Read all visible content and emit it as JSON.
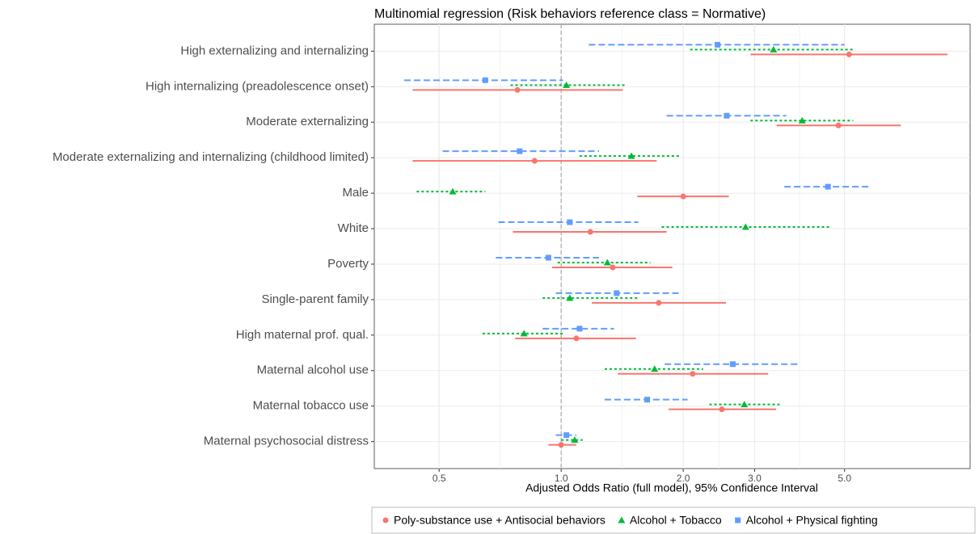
{
  "chart_data": {
    "type": "forest",
    "title": "Multinomial regression (Risk behaviors reference class = Normative)",
    "x_label": "Adjusted Odds Ratio (full model), 95% Confidence Interval",
    "log_x": true,
    "grid": true,
    "reference_line": 1,
    "legend_position": "bottom",
    "xlim": [
      0.346,
      10.2
    ],
    "xticks": [
      0.5,
      {
        "value": 1,
        "label": "1.0"
      },
      {
        "value": 2,
        "label": "2.0"
      },
      {
        "value": 3,
        "label": "3.0"
      },
      {
        "value": 5,
        "label": "5.0"
      }
    ],
    "categories": [
      "High externalizing and internalizing",
      "High internalizing (preadolescence onset)",
      "Moderate externalizing",
      "Moderate externalizing and internalizing (childhood limited)",
      "Male",
      "White",
      "Poverty",
      "Single-parent family",
      "High maternal prof. qual.",
      "Maternal alcohol use",
      "Maternal tobacco use",
      "Maternal psychosocial distress"
    ],
    "series": [
      {
        "name": "Poly-substance use + Antisocial behaviors",
        "color": "#F8766D",
        "marker": "circle",
        "line": "solid",
        "values": [
          5.13,
          0.78,
          4.83,
          0.86,
          2.0,
          1.18,
          1.34,
          1.74,
          1.09,
          2.11,
          2.49,
          1.0
        ],
        "lower": [
          2.93,
          0.43,
          3.4,
          0.43,
          1.54,
          0.76,
          0.95,
          1.19,
          0.77,
          1.38,
          1.84,
          0.93
        ],
        "upper": [
          8.97,
          1.42,
          6.88,
          1.72,
          2.59,
          1.82,
          1.88,
          2.55,
          1.53,
          3.24,
          3.39,
          1.09
        ]
      },
      {
        "name": "Alcohol + Tobacco",
        "color": "#00BA38",
        "marker": "triangle",
        "line": "dotted",
        "values": [
          3.34,
          1.03,
          3.93,
          1.49,
          0.54,
          2.85,
          1.3,
          1.05,
          0.81,
          1.7,
          2.83,
          1.08
        ],
        "lower": [
          2.08,
          0.75,
          2.93,
          1.11,
          0.44,
          1.77,
          0.98,
          0.9,
          0.64,
          1.28,
          2.32,
          1.0
        ],
        "upper": [
          5.29,
          1.44,
          5.25,
          1.98,
          0.65,
          4.63,
          1.66,
          1.55,
          1.01,
          2.24,
          3.5,
          1.13
        ]
      },
      {
        "name": "Alcohol + Physical fighting",
        "color": "#619CFF",
        "marker": "square",
        "line": "dashed",
        "values": [
          2.43,
          0.65,
          2.56,
          0.79,
          4.55,
          1.05,
          0.93,
          1.37,
          1.11,
          2.65,
          1.63,
          1.03
        ],
        "lower": [
          1.17,
          0.41,
          1.82,
          0.51,
          3.55,
          0.7,
          0.69,
          0.97,
          0.9,
          1.8,
          1.28,
          0.97
        ],
        "upper": [
          5.0,
          1.01,
          3.59,
          1.24,
          5.82,
          1.55,
          1.24,
          1.95,
          1.35,
          3.89,
          2.05,
          1.09
        ]
      }
    ]
  }
}
